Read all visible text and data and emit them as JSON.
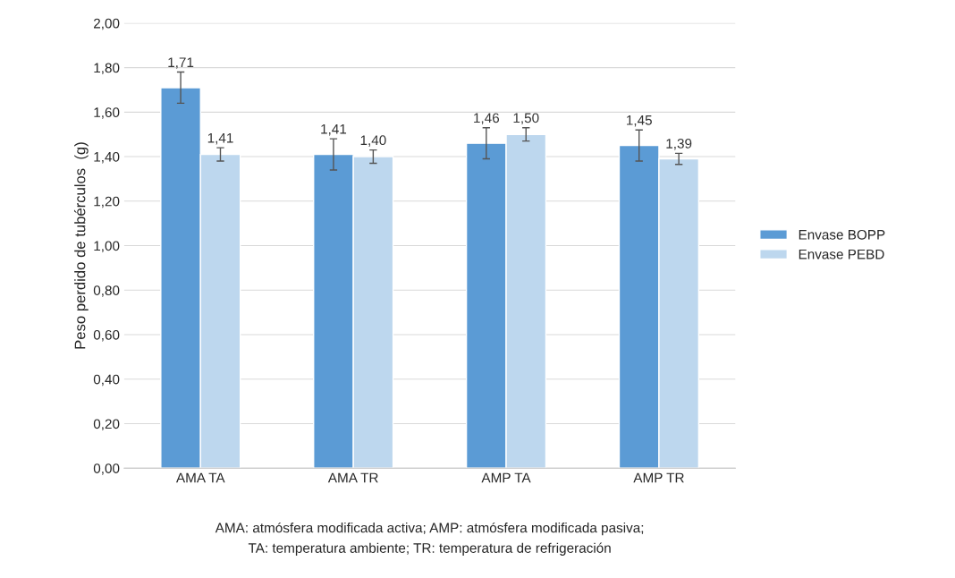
{
  "chart_data": {
    "type": "bar",
    "ylabel": "Peso perdido de tubérculos  (g)",
    "categories": [
      "AMA TA",
      "AMA TR",
      "AMP TA",
      "AMP TR"
    ],
    "series": [
      {
        "name": "Envase BOPP",
        "color": "#5b9bd5",
        "values": [
          1.71,
          1.41,
          1.46,
          1.45
        ],
        "errors": [
          0.07,
          0.07,
          0.07,
          0.07
        ],
        "value_labels": [
          "1,71",
          "1,41",
          "1,46",
          "1,45"
        ]
      },
      {
        "name": "Envase PEBD",
        "color": "#bdd7ee",
        "values": [
          1.41,
          1.4,
          1.5,
          1.39
        ],
        "errors": [
          0.03,
          0.03,
          0.03,
          0.025
        ],
        "value_labels": [
          "1,41",
          "1,40",
          "1,50",
          "1,39"
        ]
      }
    ],
    "ylim": [
      0,
      2
    ],
    "yticks": [
      {
        "value": 0,
        "label": "0,00"
      },
      {
        "value": 0.2,
        "label": "0,20"
      },
      {
        "value": 0.4,
        "label": "0,40"
      },
      {
        "value": 0.6,
        "label": "0,60"
      },
      {
        "value": 0.8,
        "label": "0,80"
      },
      {
        "value": 1.0,
        "label": "1,00"
      },
      {
        "value": 1.2,
        "label": "1,20"
      },
      {
        "value": 1.4,
        "label": "1,40"
      },
      {
        "value": 1.6,
        "label": "1,60"
      },
      {
        "value": 1.8,
        "label": "1,80"
      },
      {
        "value": 2.0,
        "label": "2,00"
      }
    ],
    "grid": "y",
    "legend": "right",
    "annotations": [
      "AMA: atmósfera modificada activa; AMP: atmósfera modificada pasiva;",
      "TA: temperatura ambiente; TR: temperatura de refrigeración"
    ]
  }
}
